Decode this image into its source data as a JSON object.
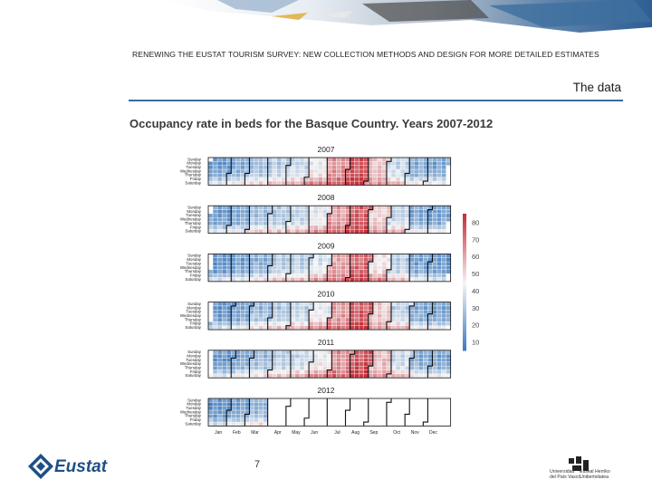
{
  "header": {
    "running_title": "RENEWING THE EUSTAT TOURISM SURVEY: NEW COLLECTION METHODS AND DESIGN FOR MORE DETAILED ESTIMATES",
    "section": "The data"
  },
  "footer": {
    "logo_left": "Eustat",
    "page_number": "7",
    "logo_right": {
      "line1a": "Universidad",
      "line1b": "Euskal Herriko",
      "line2a": "del País Vasco",
      "line2b": "Unibertsitatea"
    }
  },
  "colors": {
    "low": "#3a78bd",
    "mid": "#f4f4f4",
    "high": "#c4303a",
    "rule": "#3b6a9c",
    "brand": "#1e4f86"
  },
  "chart_data": {
    "type": "heatmap",
    "title": "Occupancy rate in beds for the Basque Country. Years 2007-2012",
    "years": [
      "2007",
      "2008",
      "2009",
      "2010",
      "2011",
      "2012"
    ],
    "weekdays": [
      "Sunday",
      "Monday",
      "Tuesday",
      "Wednesday",
      "Thursday",
      "Friday",
      "Saturday"
    ],
    "months": [
      "Jan",
      "Feb",
      "Mar",
      "Apr",
      "May",
      "Jun",
      "Jul",
      "Aug",
      "Sep",
      "Oct",
      "Nov",
      "Dec"
    ],
    "legend_ticks": [
      80,
      70,
      60,
      50,
      40,
      30,
      20,
      10
    ],
    "color_range": [
      5,
      85
    ],
    "legend_position": "right",
    "monthly_mean_occupancy": {
      "2007": [
        25,
        30,
        36,
        40,
        44,
        52,
        68,
        80,
        58,
        44,
        30,
        28
      ],
      "2008": [
        24,
        28,
        36,
        38,
        42,
        50,
        66,
        78,
        56,
        42,
        28,
        26
      ],
      "2009": [
        22,
        26,
        32,
        38,
        40,
        48,
        64,
        76,
        54,
        40,
        26,
        24
      ],
      "2010": [
        22,
        26,
        34,
        38,
        42,
        50,
        66,
        78,
        56,
        42,
        28,
        26
      ],
      "2011": [
        24,
        28,
        34,
        40,
        44,
        52,
        68,
        80,
        58,
        44,
        30,
        28
      ],
      "2012": [
        22,
        26,
        32,
        null,
        null,
        null,
        null,
        null,
        null,
        null,
        null,
        null
      ]
    },
    "weekday_offsets": [
      -6,
      -10,
      -8,
      -6,
      -4,
      6,
      16
    ]
  }
}
